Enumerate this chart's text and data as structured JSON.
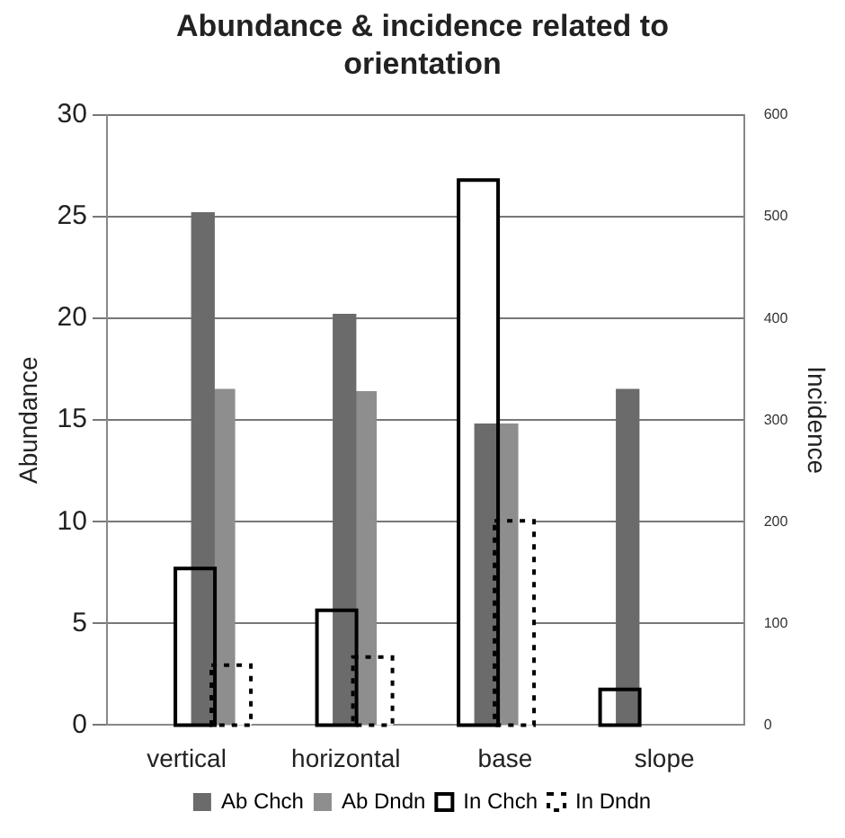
{
  "chart_data": {
    "type": "bar",
    "title": "Abundance & incidence related to orientation",
    "categories": [
      "vertical",
      "horizontal",
      "base",
      "slope"
    ],
    "ylabel": "Abundance",
    "y2label": "Incidence",
    "ylim": [
      0,
      30
    ],
    "yticks": [
      0,
      5,
      10,
      15,
      20,
      25,
      30
    ],
    "y2lim": [
      0,
      600
    ],
    "y2ticks": [
      0,
      100,
      200,
      300,
      400,
      500,
      600
    ],
    "grid": "y",
    "legend": "bottom",
    "series": [
      {
        "name": "Ab Chch",
        "color": "#6b6b6b",
        "values": [
          25.2,
          20.2,
          14.8,
          16.5
        ]
      },
      {
        "name": "Ab Dndn",
        "color": "#8e8e8e",
        "values": [
          16.5,
          16.4,
          14.8,
          null
        ]
      },
      {
        "name": "In Chch",
        "color": "#000000",
        "axis": "y2",
        "line_style": "solid",
        "values": [
          154,
          113,
          536,
          35
        ]
      },
      {
        "name": "In Dndn",
        "color": "#000000",
        "axis": "y2",
        "line_style": "dotted",
        "values": [
          59,
          67,
          201,
          null
        ]
      }
    ]
  }
}
